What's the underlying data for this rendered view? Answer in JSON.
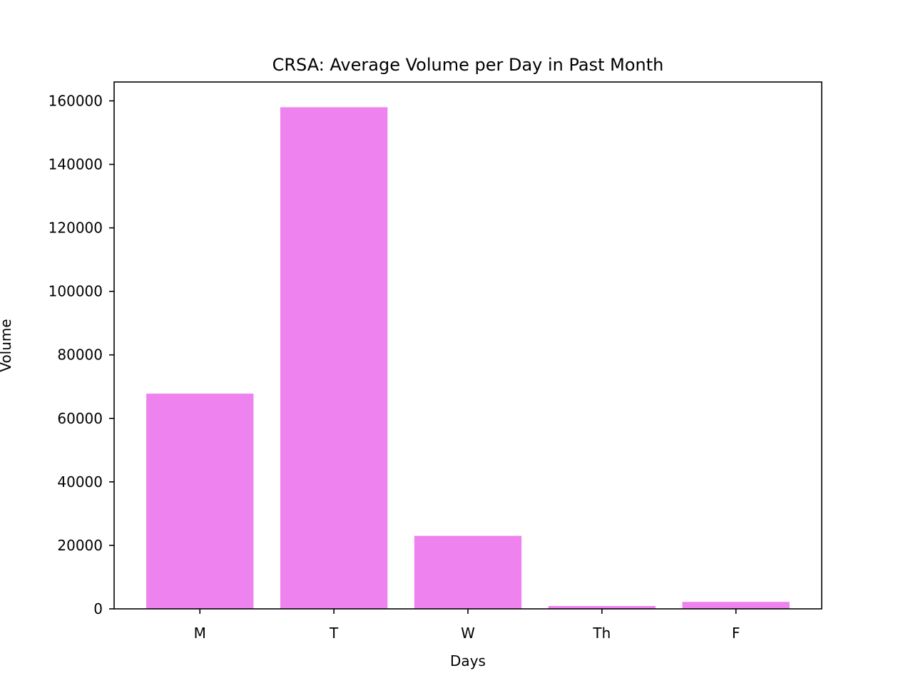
{
  "chart_data": {
    "type": "bar",
    "title": "CRSA: Average Volume per Day in Past Month",
    "xlabel": "Days",
    "ylabel": "Volume",
    "categories": [
      "M",
      "T",
      "W",
      "Th",
      "F"
    ],
    "values": [
      67800,
      158000,
      23000,
      900,
      2200
    ],
    "ylim": [
      0,
      165950
    ],
    "yticks": [
      0,
      20000,
      40000,
      60000,
      80000,
      100000,
      120000,
      140000,
      160000
    ],
    "grid": false,
    "legend": "none",
    "bar_color": "#ee82ee"
  }
}
